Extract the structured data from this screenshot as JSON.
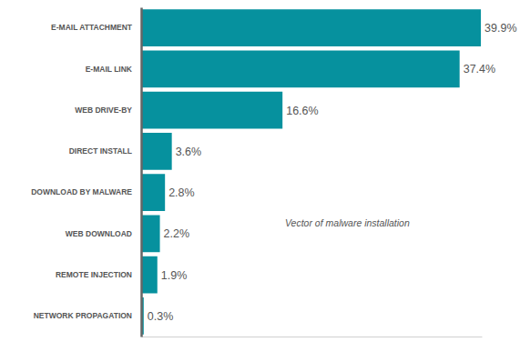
{
  "chart_data": {
    "type": "bar",
    "orientation": "horizontal",
    "categories": [
      "E-MAIL ATTACHMENT",
      "E-MAIL LINK",
      "WEB DRIVE-BY",
      "DIRECT INSTALL",
      "DOWNLOAD BY MALWARE",
      "WEB DOWNLOAD",
      "REMOTE INJECTION",
      "NETWORK PROPAGATION"
    ],
    "values": [
      39.9,
      37.4,
      16.6,
      3.6,
      2.8,
      2.2,
      1.9,
      0.3
    ],
    "value_labels": [
      "39.9%",
      "37.4%",
      "16.6%",
      "3.6%",
      "2.8%",
      "2.2%",
      "1.9%",
      "0.3%"
    ],
    "color": "#06919e",
    "xlim": [
      0,
      40
    ],
    "data_labels": true,
    "tick_labels": "y",
    "grid": false,
    "annotation": "Vector of malware installation"
  }
}
